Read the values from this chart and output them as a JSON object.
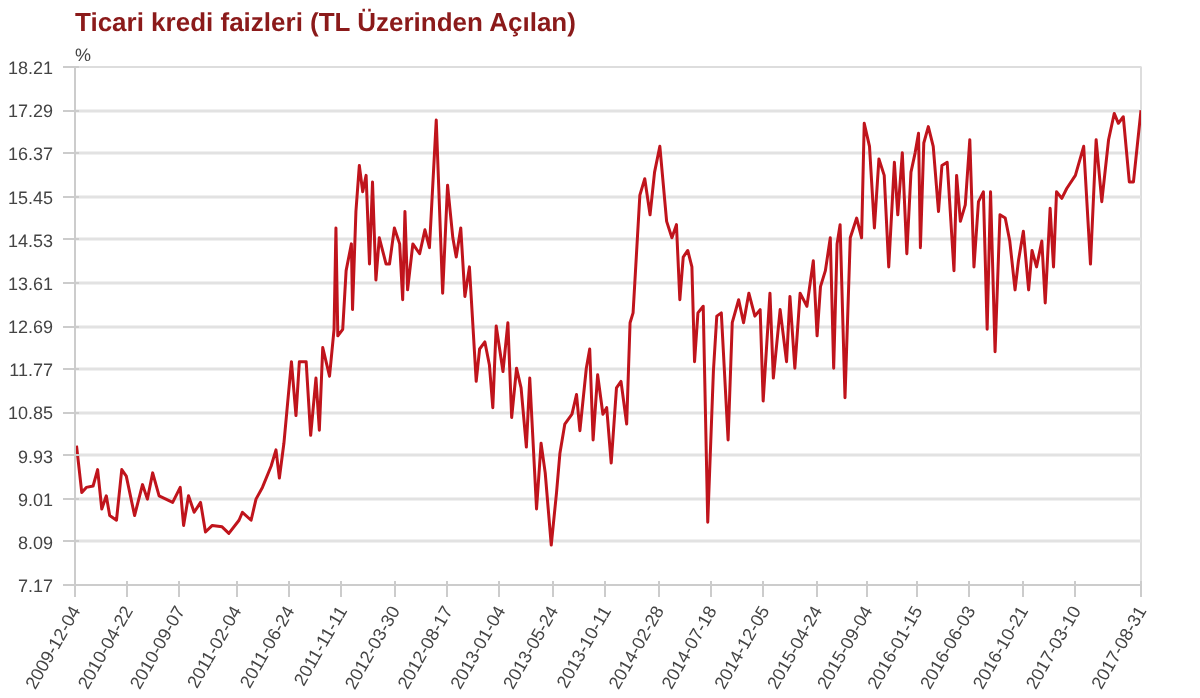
{
  "chart_data": {
    "type": "line",
    "title": "Ticari kredi faizleri (TL Üzerinden Açılan)",
    "ylabel": "%",
    "xlim": [
      "2009-12-04",
      "2017-08-31"
    ],
    "xticks": [
      "2009-12-04",
      "2010-04-22",
      "2010-09-07",
      "2011-02-04",
      "2011-06-24",
      "2011-11-11",
      "2012-03-30",
      "2012-08-17",
      "2013-01-04",
      "2013-05-24",
      "2013-10-11",
      "2014-02-28",
      "2014-07-18",
      "2014-12-05",
      "2015-04-24",
      "2015-09-04",
      "2016-01-15",
      "2016-06-03",
      "2016-10-21",
      "2017-03-10",
      "2017-08-31"
    ],
    "ylim": [
      7.17,
      18.21
    ],
    "yticks": [
      7.17,
      8.09,
      9.01,
      9.93,
      10.85,
      11.77,
      12.69,
      13.61,
      14.53,
      15.45,
      16.37,
      17.29,
      18.21
    ],
    "grid": "y",
    "marker": "none",
    "line_style": "solid",
    "series": [
      {
        "color": "#c0141c",
        "x": [
          "2009-12-08",
          "2009-12-22",
          "2010-01-03",
          "2010-01-21",
          "2010-02-02",
          "2010-02-13",
          "2010-02-25",
          "2010-03-06",
          "2010-03-24",
          "2010-04-07",
          "2010-04-19",
          "2010-05-11",
          "2010-06-01",
          "2010-06-14",
          "2010-06-28",
          "2010-07-15",
          "2010-08-20",
          "2010-09-09",
          "2010-09-18",
          "2010-10-01",
          "2010-10-16",
          "2010-11-02",
          "2010-11-15",
          "2010-12-03",
          "2010-12-29",
          "2011-01-16",
          "2011-02-12",
          "2011-02-21",
          "2011-03-16",
          "2011-03-29",
          "2011-04-15",
          "2011-05-08",
          "2011-05-21",
          "2011-05-30",
          "2011-06-11",
          "2011-07-01",
          "2011-07-13",
          "2011-07-22",
          "2011-08-09",
          "2011-08-21",
          "2011-09-04",
          "2011-09-13",
          "2011-09-22",
          "2011-10-10",
          "2011-10-22",
          "2011-10-27",
          "2011-11-01",
          "2011-11-14",
          "2011-11-23",
          "2011-12-07",
          "2011-12-10",
          "2011-12-19",
          "2011-12-28",
          "2012-01-06",
          "2012-01-15",
          "2012-01-24",
          "2012-02-01",
          "2012-02-10",
          "2012-02-19",
          "2012-03-08",
          "2012-03-17",
          "2012-03-30",
          "2012-04-13",
          "2012-04-21",
          "2012-04-27",
          "2012-05-04",
          "2012-05-18",
          "2012-06-05",
          "2012-06-19",
          "2012-07-01",
          "2012-07-19",
          "2012-08-05",
          "2012-08-18",
          "2012-09-01",
          "2012-09-10",
          "2012-09-22",
          "2012-10-03",
          "2012-10-15",
          "2012-11-02",
          "2012-11-11",
          "2012-11-25",
          "2012-12-07",
          "2012-12-16",
          "2012-12-25",
          "2013-01-12",
          "2013-01-25",
          "2013-02-04",
          "2013-02-17",
          "2013-03-01",
          "2013-03-15",
          "2013-03-24",
          "2013-04-11",
          "2013-04-23",
          "2013-05-04",
          "2013-05-20",
          "2013-06-03",
          "2013-06-12",
          "2013-06-25",
          "2013-07-14",
          "2013-07-26",
          "2013-08-04",
          "2013-08-21",
          "2013-08-30",
          "2013-09-08",
          "2013-09-20",
          "2013-10-04",
          "2013-10-14",
          "2013-10-26",
          "2013-11-09",
          "2013-11-21",
          "2013-12-06",
          "2013-12-15",
          "2013-12-23",
          "2014-01-10",
          "2014-01-23",
          "2014-02-06",
          "2014-02-18",
          "2014-03-04",
          "2014-03-22",
          "2014-04-05",
          "2014-04-17",
          "2014-04-26",
          "2014-05-05",
          "2014-05-17",
          "2014-05-28",
          "2014-06-04",
          "2014-06-13",
          "2014-06-27",
          "2014-07-09",
          "2014-07-24",
          "2014-08-02",
          "2014-08-14",
          "2014-09-01",
          "2014-09-12",
          "2014-09-29",
          "2014-10-12",
          "2014-10-26",
          "2014-11-11",
          "2014-11-25",
          "2014-12-03",
          "2014-12-21",
          "2014-12-30",
          "2015-01-17",
          "2015-02-03",
          "2015-02-12",
          "2015-02-25",
          "2015-03-11",
          "2015-03-29",
          "2015-04-15",
          "2015-04-25",
          "2015-05-04",
          "2015-05-17",
          "2015-05-30",
          "2015-06-08",
          "2015-06-17",
          "2015-06-25",
          "2015-07-08",
          "2015-07-22",
          "2015-08-08",
          "2015-08-21",
          "2015-08-28",
          "2015-09-11",
          "2015-09-24",
          "2015-10-06",
          "2015-10-20",
          "2015-11-01",
          "2015-11-16",
          "2015-11-25",
          "2015-12-07",
          "2015-12-19",
          "2015-12-30",
          "2016-01-10",
          "2016-01-19",
          "2016-01-24",
          "2016-02-02",
          "2016-02-14",
          "2016-02-27",
          "2016-03-12",
          "2016-03-21",
          "2016-04-04",
          "2016-04-22",
          "2016-04-29",
          "2016-05-09",
          "2016-05-22",
          "2016-06-03",
          "2016-06-14",
          "2016-06-26",
          "2016-07-09",
          "2016-07-19",
          "2016-07-28",
          "2016-08-09",
          "2016-08-22",
          "2016-09-05",
          "2016-09-17",
          "2016-10-01",
          "2016-10-10",
          "2016-10-23",
          "2016-11-06",
          "2016-11-15",
          "2016-11-27",
          "2016-12-11",
          "2016-12-20",
          "2017-01-02",
          "2017-01-11",
          "2017-01-19",
          "2017-02-02",
          "2017-02-15",
          "2017-03-10",
          "2017-04-01",
          "2017-04-19",
          "2017-05-04",
          "2017-05-19",
          "2017-06-06",
          "2017-06-21",
          "2017-07-02",
          "2017-07-15",
          "2017-07-31",
          "2017-08-11",
          "2017-08-31"
        ],
        "values": [
          10.14,
          9.14,
          9.25,
          9.28,
          9.63,
          8.79,
          9.07,
          8.65,
          8.55,
          9.63,
          9.49,
          8.65,
          9.31,
          9.0,
          9.56,
          9.07,
          8.93,
          9.25,
          8.44,
          9.07,
          8.72,
          8.93,
          8.3,
          8.44,
          8.41,
          8.27,
          8.55,
          8.72,
          8.55,
          9.0,
          9.25,
          9.7,
          10.05,
          9.45,
          10.19,
          11.93,
          10.78,
          11.93,
          11.93,
          10.36,
          11.58,
          10.47,
          12.23,
          11.62,
          12.62,
          14.78,
          12.48,
          12.62,
          13.87,
          14.44,
          13.04,
          15.13,
          16.11,
          15.55,
          15.9,
          14.01,
          15.76,
          13.67,
          14.57,
          14.01,
          14.01,
          14.78,
          14.44,
          13.25,
          15.13,
          13.46,
          14.44,
          14.23,
          14.74,
          14.36,
          17.08,
          13.39,
          15.69,
          14.57,
          14.16,
          14.78,
          13.32,
          13.95,
          11.51,
          12.2,
          12.35,
          11.86,
          10.95,
          12.69,
          11.72,
          12.76,
          10.74,
          11.79,
          11.37,
          10.11,
          11.58,
          8.79,
          10.19,
          9.56,
          8.02,
          9.14,
          9.98,
          10.6,
          10.81,
          11.23,
          10.46,
          11.79,
          12.2,
          10.26,
          11.65,
          10.81,
          10.95,
          9.77,
          11.37,
          11.51,
          10.6,
          12.76,
          12.97,
          15.48,
          15.83,
          15.06,
          15.97,
          16.52,
          14.92,
          14.57,
          14.85,
          13.25,
          14.16,
          14.3,
          13.95,
          11.93,
          12.97,
          13.11,
          8.51,
          11.72,
          12.9,
          12.97,
          10.26,
          12.76,
          13.25,
          12.76,
          13.39,
          12.9,
          13.04,
          11.09,
          13.39,
          11.58,
          13.04,
          11.93,
          13.32,
          11.79,
          13.39,
          13.11,
          14.08,
          12.48,
          13.53,
          13.87,
          14.57,
          11.79,
          14.44,
          14.85,
          11.16,
          14.57,
          14.99,
          14.57,
          17.01,
          16.52,
          14.78,
          16.25,
          15.9,
          13.95,
          16.18,
          15.06,
          16.38,
          14.23,
          15.97,
          16.38,
          16.8,
          14.36,
          16.59,
          16.94,
          16.52,
          15.13,
          16.11,
          16.18,
          13.87,
          15.9,
          14.92,
          15.27,
          16.66,
          13.95,
          15.34,
          15.55,
          12.62,
          15.55,
          12.14,
          15.06,
          14.99,
          14.5,
          13.46,
          14.08,
          14.71,
          13.46,
          14.3,
          13.95,
          14.5,
          13.18,
          15.2,
          13.95,
          15.55,
          15.41,
          15.62,
          15.9,
          16.52,
          14.01,
          16.66,
          15.34,
          16.66,
          17.22,
          17.01,
          17.15,
          15.76,
          15.76,
          17.29
        ]
      }
    ]
  }
}
